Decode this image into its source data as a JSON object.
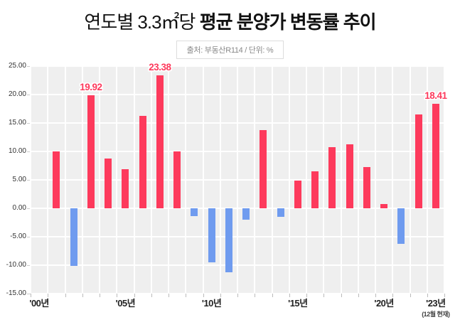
{
  "header": {
    "title_prefix": "연도별 3.3㎡당 ",
    "title_emphasis": "평균 분양가 변동률 추이",
    "source_note": "출처: 부동산R114 / 단위: %"
  },
  "colors": {
    "positive_bar": "#fd3a5c",
    "negative_bar": "#6f9bef",
    "plot_background": "#efefef",
    "grid_line": "#ffffff",
    "annotation_text": "#fd3a5c"
  },
  "chart_data": {
    "type": "bar",
    "title": "연도별 3.3㎡당 평균 분양가 변동률 추이",
    "source": "부동산R114",
    "unit": "%",
    "ylim": [
      -15,
      25
    ],
    "ytick_step": 5,
    "grid": true,
    "ytick_labels": [
      "25.00",
      "20.00",
      "15.00",
      "10.00",
      "5.00",
      "0.00",
      "-5.00",
      "-10.00",
      "-15.00"
    ],
    "categories": [
      "2000",
      "2001",
      "2002",
      "2003",
      "2004",
      "2005",
      "2006",
      "2007",
      "2008",
      "2009",
      "2010",
      "2011",
      "2012",
      "2013",
      "2014",
      "2015",
      "2016",
      "2017",
      "2018",
      "2019",
      "2020",
      "2021",
      "2022",
      "2023"
    ],
    "values": [
      0,
      10.0,
      -10.1,
      19.92,
      8.7,
      6.9,
      16.3,
      23.38,
      10.0,
      -1.4,
      -9.5,
      -11.2,
      -2.0,
      13.7,
      -1.5,
      4.9,
      6.5,
      10.7,
      11.3,
      7.3,
      0.7,
      -6.3,
      16.5,
      18.41
    ],
    "visible_x_labels": [
      {
        "index": 0,
        "label": "'00년"
      },
      {
        "index": 5,
        "label": "'05년"
      },
      {
        "index": 10,
        "label": "'10년"
      },
      {
        "index": 15,
        "label": "'15년"
      },
      {
        "index": 20,
        "label": "'20년"
      },
      {
        "index": 23,
        "label": "'23년",
        "footnote": "(12월 현재)"
      }
    ],
    "annotations": [
      {
        "index": 3,
        "text": "19.92"
      },
      {
        "index": 7,
        "text": "23.38"
      },
      {
        "index": 23,
        "text": "18.41"
      }
    ]
  }
}
